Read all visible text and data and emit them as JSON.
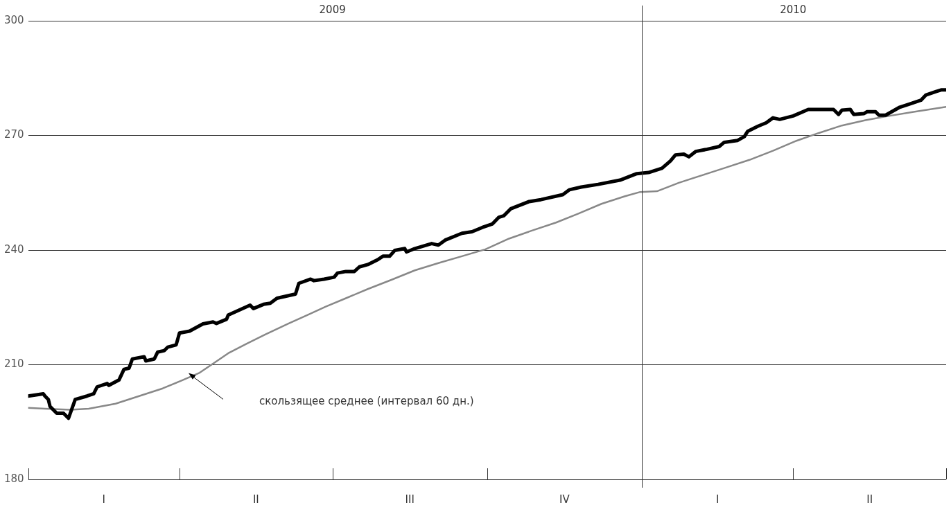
{
  "chart_data": {
    "type": "line",
    "xlim": [
      "2009-01-01",
      "2010-07-01"
    ],
    "xticks": [
      {
        "value": "2009-01-01",
        "label": null
      },
      {
        "value": "2009-04-01",
        "label": null
      },
      {
        "value": "2009-07-01",
        "label": "2009"
      },
      {
        "value": "2009-10-01",
        "label": null
      },
      {
        "value": "2010-01-01",
        "label": null
      },
      {
        "value": "2010-04-01",
        "label": "2010"
      },
      {
        "value": "2010-07-01",
        "label": null
      }
    ],
    "ylim": [
      180,
      300
    ],
    "yticks": [
      180,
      210,
      240,
      270,
      300
    ],
    "grid": "y",
    "legend": false,
    "marker": "none",
    "line_style": "solid",
    "ref_lines": [
      {
        "axis": "x",
        "value": "2010-01-01",
        "color": "#333333"
      }
    ],
    "annotations": [
      "скользящее среднее (интервал 60 дн.)",
      "I",
      "II",
      "III",
      "IV",
      "I",
      "II"
    ],
    "series": [
      {
        "color": "#000000",
        "x": [
          "2009-01-01",
          "2009-01-10",
          "2009-01-11",
          "2009-01-13",
          "2009-01-14",
          "2009-01-18",
          "2009-01-22",
          "2009-01-25",
          "2009-01-29",
          "2009-02-05",
          "2009-02-09",
          "2009-02-11",
          "2009-02-17",
          "2009-02-18",
          "2009-02-24",
          "2009-02-27",
          "2009-03-02",
          "2009-03-04",
          "2009-03-11",
          "2009-03-12",
          "2009-03-17",
          "2009-03-19",
          "2009-03-23",
          "2009-03-25",
          "2009-03-30",
          "2009-04-01",
          "2009-04-07",
          "2009-04-15",
          "2009-04-21",
          "2009-04-23",
          "2009-04-29",
          "2009-04-30",
          "2009-05-13",
          "2009-05-15",
          "2009-05-21",
          "2009-05-25",
          "2009-05-29",
          "2009-06-09",
          "2009-06-11",
          "2009-06-18",
          "2009-06-20",
          "2009-06-26",
          "2009-07-02",
          "2009-07-04",
          "2009-07-09",
          "2009-07-14",
          "2009-07-17",
          "2009-07-22",
          "2009-07-28",
          "2009-07-31",
          "2009-08-04",
          "2009-08-07",
          "2009-08-13",
          "2009-08-14",
          "2009-08-19",
          "2009-08-29",
          "2009-09-02",
          "2009-09-06",
          "2009-09-16",
          "2009-09-22",
          "2009-09-28",
          "2009-10-04",
          "2009-10-08",
          "2009-10-11",
          "2009-10-15",
          "2009-10-26",
          "2009-11-02",
          "2009-11-15",
          "2009-11-19",
          "2009-11-26",
          "2009-12-06",
          "2009-12-19",
          "2009-12-29",
          "2010-01-05",
          "2010-01-13",
          "2010-01-18",
          "2010-01-21",
          "2010-01-26",
          "2010-01-29",
          "2010-02-02",
          "2010-02-09",
          "2010-02-16",
          "2010-02-19",
          "2010-02-27",
          "2010-03-03",
          "2010-03-05",
          "2010-03-11",
          "2010-03-16",
          "2010-03-20",
          "2010-03-24",
          "2010-04-01",
          "2010-04-10",
          "2010-04-16",
          "2010-04-25",
          "2010-04-28",
          "2010-04-30",
          "2010-05-05",
          "2010-05-07",
          "2010-05-13",
          "2010-05-15",
          "2010-05-20",
          "2010-05-22",
          "2010-05-26",
          "2010-06-03",
          "2010-06-09",
          "2010-06-16",
          "2010-06-19",
          "2010-06-25",
          "2010-06-28",
          "2010-07-01"
        ],
        "values": [
          201.8,
          202.4,
          201.8,
          200.9,
          199.1,
          197.3,
          197.3,
          196.0,
          200.9,
          201.8,
          202.4,
          204.2,
          205.1,
          204.6,
          206.0,
          208.8,
          209.1,
          211.5,
          212.1,
          211.0,
          211.5,
          213.3,
          213.7,
          214.6,
          215.2,
          218.3,
          218.8,
          220.7,
          221.2,
          220.8,
          221.9,
          223.0,
          225.6,
          224.7,
          225.8,
          226.1,
          227.4,
          228.5,
          231.3,
          232.4,
          232.0,
          232.4,
          232.9,
          234.0,
          234.4,
          234.4,
          235.6,
          236.2,
          237.5,
          238.4,
          238.4,
          239.9,
          240.4,
          239.5,
          240.4,
          241.7,
          241.3,
          242.6,
          244.4,
          244.8,
          245.9,
          246.8,
          248.6,
          249.0,
          250.8,
          252.7,
          253.2,
          254.5,
          255.8,
          256.5,
          257.2,
          258.3,
          260.0,
          260.3,
          261.4,
          263.3,
          264.9,
          265.1,
          264.4,
          265.8,
          266.4,
          267.1,
          268.2,
          268.7,
          269.7,
          271.1,
          272.4,
          273.3,
          274.6,
          274.2,
          275.1,
          276.8,
          276.8,
          276.8,
          275.5,
          276.6,
          276.8,
          275.5,
          275.7,
          276.2,
          276.2,
          275.3,
          275.3,
          277.3,
          278.2,
          279.2,
          280.6,
          281.5,
          281.9,
          281.9
        ]
      },
      {
        "color": "#888888",
        "x": [
          "2009-01-01",
          "2009-01-11",
          "2009-01-26",
          "2009-02-06",
          "2009-02-22",
          "2009-03-08",
          "2009-03-22",
          "2009-04-02",
          "2009-04-13",
          "2009-04-22",
          "2009-04-30",
          "2009-05-11",
          "2009-05-22",
          "2009-06-05",
          "2009-06-16",
          "2009-06-27",
          "2009-07-09",
          "2009-07-22",
          "2009-08-05",
          "2009-08-19",
          "2009-09-02",
          "2009-09-16",
          "2009-09-30",
          "2009-10-14",
          "2009-10-27",
          "2009-11-11",
          "2009-11-24",
          "2009-12-08",
          "2009-12-22",
          "2009-12-31",
          "2010-01-10",
          "2010-01-23",
          "2010-02-06",
          "2010-02-20",
          "2010-03-06",
          "2010-03-20",
          "2010-04-03",
          "2010-04-16",
          "2010-04-30",
          "2010-05-14",
          "2010-05-28",
          "2010-06-11",
          "2010-07-01"
        ],
        "values": [
          198.7,
          198.5,
          198.2,
          198.5,
          199.8,
          201.8,
          203.8,
          205.8,
          207.9,
          210.6,
          213.0,
          215.5,
          217.9,
          220.8,
          223.0,
          225.2,
          227.4,
          229.8,
          232.2,
          234.7,
          236.6,
          238.4,
          240.2,
          243.0,
          245.0,
          247.2,
          249.5,
          252.1,
          254.1,
          255.2,
          255.4,
          257.6,
          259.6,
          261.6,
          263.6,
          266.0,
          268.6,
          270.6,
          272.6,
          274.0,
          275.1,
          276.1,
          277.5
        ]
      }
    ]
  }
}
